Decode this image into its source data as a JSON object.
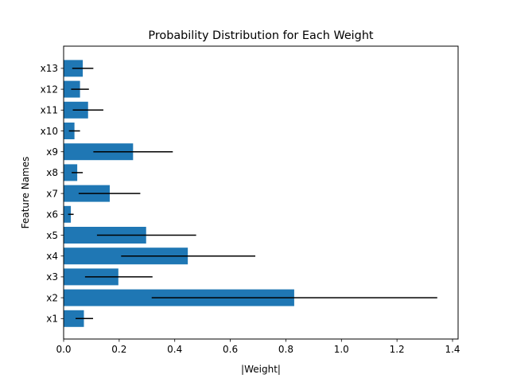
{
  "chart_data": {
    "type": "bar",
    "orientation": "horizontal",
    "title": "Probability Distribution for Each Weight",
    "xlabel": "|Weight|",
    "ylabel": "Feature Names",
    "xlim": [
      0,
      1.42
    ],
    "xticks": [
      0.0,
      0.2,
      0.4,
      0.6,
      0.8,
      1.0,
      1.2,
      1.4
    ],
    "xtick_labels": [
      "0.0",
      "0.2",
      "0.4",
      "0.6",
      "0.8",
      "1.0",
      "1.2",
      "1.4"
    ],
    "grid": false,
    "bar_color": "#1f77b4",
    "errorbar_color": "#000000",
    "categories": [
      "x1",
      "x2",
      "x3",
      "x4",
      "x5",
      "x6",
      "x7",
      "x8",
      "x9",
      "x10",
      "x11",
      "x12",
      "x13"
    ],
    "values": [
      0.073,
      0.83,
      0.197,
      0.447,
      0.297,
      0.026,
      0.166,
      0.049,
      0.25,
      0.039,
      0.088,
      0.059,
      0.069
    ],
    "error_low": [
      0.043,
      0.317,
      0.077,
      0.207,
      0.12,
      0.016,
      0.054,
      0.029,
      0.107,
      0.019,
      0.033,
      0.027,
      0.031
    ],
    "error_high": [
      0.106,
      1.345,
      0.32,
      0.69,
      0.477,
      0.036,
      0.276,
      0.069,
      0.393,
      0.059,
      0.143,
      0.091,
      0.107
    ]
  }
}
